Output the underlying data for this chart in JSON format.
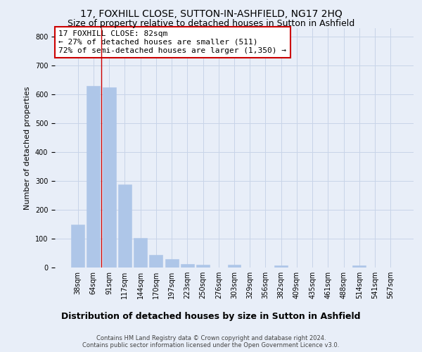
{
  "title": "17, FOXHILL CLOSE, SUTTON-IN-ASHFIELD, NG17 2HQ",
  "subtitle": "Size of property relative to detached houses in Sutton in Ashfield",
  "xlabel": "Distribution of detached houses by size in Sutton in Ashfield",
  "ylabel": "Number of detached properties",
  "categories": [
    "38sqm",
    "64sqm",
    "91sqm",
    "117sqm",
    "144sqm",
    "170sqm",
    "197sqm",
    "223sqm",
    "250sqm",
    "276sqm",
    "303sqm",
    "329sqm",
    "356sqm",
    "382sqm",
    "409sqm",
    "435sqm",
    "461sqm",
    "488sqm",
    "514sqm",
    "541sqm",
    "567sqm"
  ],
  "values": [
    148,
    630,
    625,
    288,
    102,
    45,
    30,
    12,
    10,
    0,
    10,
    0,
    0,
    8,
    0,
    0,
    0,
    0,
    8,
    0,
    0
  ],
  "bar_color": "#aec6e8",
  "bar_edgecolor": "#aec6e8",
  "annotation_text": "17 FOXHILL CLOSE: 82sqm\n← 27% of detached houses are smaller (511)\n72% of semi-detached houses are larger (1,350) →",
  "annotation_box_color": "white",
  "annotation_box_edgecolor": "#cc0000",
  "vline_color": "#cc0000",
  "vline_x": 1.5,
  "ylim": [
    0,
    830
  ],
  "yticks": [
    0,
    100,
    200,
    300,
    400,
    500,
    600,
    700,
    800
  ],
  "grid_color": "#c8d4e8",
  "background_color": "#e8eef8",
  "footer": "Contains HM Land Registry data © Crown copyright and database right 2024.\nContains public sector information licensed under the Open Government Licence v3.0.",
  "title_fontsize": 10,
  "subtitle_fontsize": 9,
  "xlabel_fontsize": 9,
  "ylabel_fontsize": 8,
  "tick_fontsize": 7,
  "annotation_fontsize": 8,
  "footer_fontsize": 6
}
